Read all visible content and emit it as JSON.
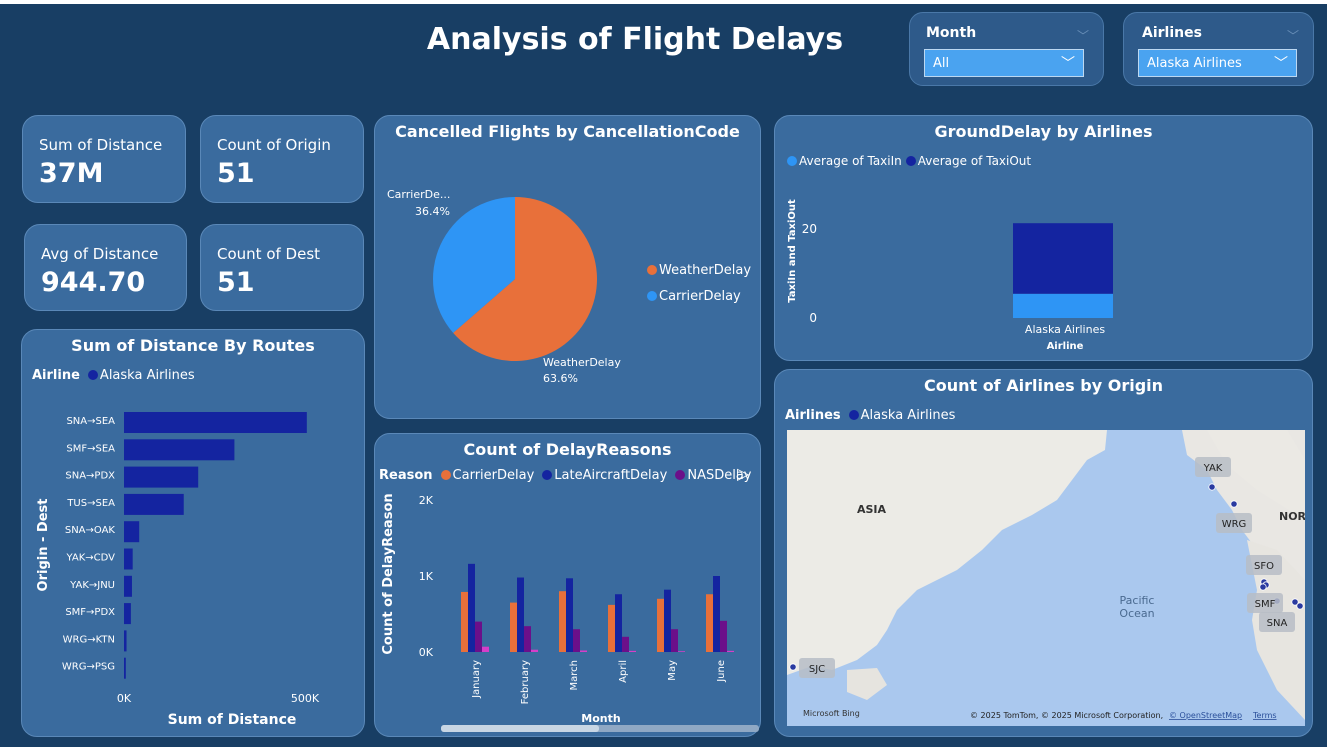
{
  "header": {
    "title": "Analysis of Flight Delays"
  },
  "slicers": {
    "month": {
      "label": "Month",
      "value": "All"
    },
    "airlines": {
      "label": "Airlines",
      "value": "Alaska Airlines"
    }
  },
  "kpis": {
    "sum_distance": {
      "label": "Sum of Distance",
      "value": "37M"
    },
    "count_origin": {
      "label": "Count of Origin",
      "value": "51"
    },
    "avg_distance": {
      "label": "Avg of Distance",
      "value": "944.70"
    },
    "count_dest": {
      "label": "Count of Dest",
      "value": "51"
    }
  },
  "colors": {
    "background": "#183e64",
    "card": "#3a6b9e",
    "navy": "#1424a0",
    "orange": "#e8703a",
    "light_blue": "#2e95f5",
    "purple": "#6b0f8a",
    "pink": "#d63ec9"
  },
  "icons": {
    "dropdown": "chevron-down-icon",
    "legend_scroll": "play-icon"
  },
  "routes_chart": {
    "title": "Sum of Distance By Routes",
    "legend_label": "Airline",
    "legend_item": "Alaska Airlines",
    "ylabel": "Origin - Dest",
    "xlabel": "Sum of Distance",
    "tick_left": "0K",
    "tick_right": "500K"
  },
  "pie_chart": {
    "title": "Cancelled Flights by CancellationCode",
    "legend": [
      "WeatherDelay",
      "CarrierDelay"
    ],
    "label_carrier_name": "CarrierDe...",
    "label_carrier_pct": "36.4%",
    "label_weather_name": "WeatherDelay",
    "label_weather_pct": "63.6%"
  },
  "delay_chart": {
    "title": "Count of DelayReasons",
    "legend_label": "Reason",
    "legend": [
      "CarrierDelay",
      "LateAircraftDelay",
      "NASDelay"
    ],
    "ylabel": "Count of DelayReason",
    "xlabel": "Month",
    "yticks": [
      "2K",
      "1K",
      "0K"
    ]
  },
  "ground_chart": {
    "title": "GroundDelay by Airlines",
    "legend": [
      "Average of TaxiIn",
      "Average of TaxiOut"
    ],
    "ylabel": "TaxiIn and TaxiOut",
    "xlabel": "Airline",
    "yticks": [
      "20",
      "0"
    ],
    "category": "Alaska Airlines"
  },
  "map_card": {
    "title": "Count of Airlines by Origin",
    "legend_label": "Airlines",
    "legend_item": "Alaska Airlines",
    "labels": {
      "asia": "ASIA",
      "north": "NOR",
      "pacific1": "Pacific",
      "pacific2": "Ocean"
    },
    "markers": [
      "YAK",
      "WRG",
      "SFO",
      "SMF",
      "SNA",
      "SJC"
    ],
    "brand": "Microsoft Bing",
    "copyright": "© 2025 TomTom, © 2025 Microsoft Corporation,",
    "osm": "© OpenStreetMap",
    "terms": "Terms"
  },
  "chart_data": [
    {
      "type": "bar",
      "title": "Sum of Distance By Routes",
      "orientation": "horizontal",
      "categories": [
        "SNA→SEA",
        "SMF→SEA",
        "SNA→PDX",
        "TUS→SEA",
        "SNA→OAK",
        "YAK→CDV",
        "YAK→JNU",
        "SMF→PDX",
        "WRG→KTN",
        "WRG→PSG"
      ],
      "values": [
        505000,
        305000,
        205000,
        165000,
        42000,
        24000,
        22000,
        19000,
        7000,
        5000
      ],
      "xlabel": "Sum of Distance",
      "ylabel": "Origin - Dest",
      "xlim": [
        0,
        500000
      ],
      "series": [
        {
          "name": "Alaska Airlines",
          "values": [
            505000,
            305000,
            205000,
            165000,
            42000,
            24000,
            22000,
            19000,
            7000,
            5000
          ]
        }
      ]
    },
    {
      "type": "pie",
      "title": "Cancelled Flights by CancellationCode",
      "categories": [
        "WeatherDelay",
        "CarrierDelay"
      ],
      "values": [
        63.6,
        36.4
      ],
      "legend": "right"
    },
    {
      "type": "bar",
      "title": "Count of DelayReasons",
      "categories": [
        "January",
        "February",
        "March",
        "April",
        "May",
        "June"
      ],
      "series": [
        {
          "name": "CarrierDelay",
          "values": [
            790,
            650,
            800,
            620,
            700,
            760
          ]
        },
        {
          "name": "LateAircraftDelay",
          "values": [
            1160,
            980,
            970,
            760,
            820,
            1000
          ]
        },
        {
          "name": "NASDelay",
          "values": [
            400,
            340,
            300,
            200,
            300,
            410
          ]
        },
        {
          "name": "",
          "values": [
            70,
            30,
            20,
            15,
            10,
            15
          ]
        }
      ],
      "xlabel": "Month",
      "ylabel": "Count of DelayReason",
      "ylim": [
        0,
        2000
      ]
    },
    {
      "type": "bar",
      "stacked": true,
      "title": "GroundDelay by Airlines",
      "categories": [
        "Alaska Airlines"
      ],
      "series": [
        {
          "name": "Average of TaxiIn",
          "values": [
            5.5
          ]
        },
        {
          "name": "Average of TaxiOut",
          "values": [
            16
          ]
        }
      ],
      "xlabel": "Airline",
      "ylabel": "TaxiIn and TaxiOut",
      "ylim": [
        0,
        22
      ]
    }
  ]
}
